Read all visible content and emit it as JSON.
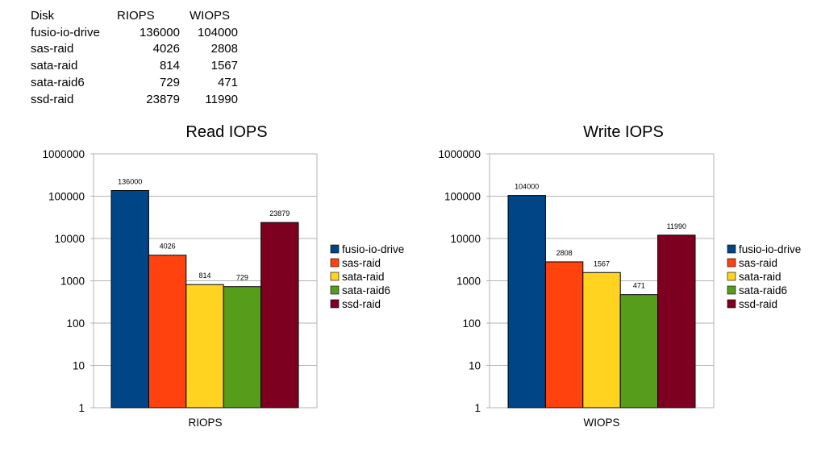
{
  "table": {
    "headers": [
      "Disk",
      "RIOPS",
      "WIOPS"
    ],
    "rows": [
      [
        "fusio-io-drive",
        "136000",
        "104000"
      ],
      [
        "sas-raid",
        "4026",
        "2808"
      ],
      [
        "sata-raid",
        "814",
        "1567"
      ],
      [
        "sata-raid6",
        "729",
        "471"
      ],
      [
        "ssd-raid",
        "23879",
        "11990"
      ]
    ]
  },
  "chart_data": [
    {
      "type": "bar",
      "title": "Read IOPS",
      "categories": [
        "RIOPS"
      ],
      "yscale": "log",
      "ylim": [
        1,
        1000000
      ],
      "yticks": [
        "1",
        "10",
        "100",
        "1000",
        "10000",
        "100000",
        "1000000"
      ],
      "legend_position": "right",
      "grid": true,
      "series": [
        {
          "name": "fusio-io-drive",
          "values": [
            136000
          ],
          "label": "136000",
          "color": "#004586"
        },
        {
          "name": "sas-raid",
          "values": [
            4026
          ],
          "label": "4026",
          "color": "#ff420e"
        },
        {
          "name": "sata-raid",
          "values": [
            814
          ],
          "label": "814",
          "color": "#ffd320"
        },
        {
          "name": "sata-raid6",
          "values": [
            729
          ],
          "label": "729",
          "color": "#579d1c"
        },
        {
          "name": "ssd-raid",
          "values": [
            23879
          ],
          "label": "23879",
          "color": "#7e0021"
        }
      ]
    },
    {
      "type": "bar",
      "title": "Write IOPS",
      "categories": [
        "WIOPS"
      ],
      "yscale": "log",
      "ylim": [
        1,
        1000000
      ],
      "yticks": [
        "1",
        "10",
        "100",
        "1000",
        "10000",
        "100000",
        "1000000"
      ],
      "legend_position": "right",
      "grid": true,
      "series": [
        {
          "name": "fusio-io-drive",
          "values": [
            104000
          ],
          "label": "104000",
          "color": "#004586"
        },
        {
          "name": "sas-raid",
          "values": [
            2808
          ],
          "label": "2808",
          "color": "#ff420e"
        },
        {
          "name": "sata-raid",
          "values": [
            1567
          ],
          "label": "1567",
          "color": "#ffd320"
        },
        {
          "name": "sata-raid6",
          "values": [
            471
          ],
          "label": "471",
          "color": "#579d1c"
        },
        {
          "name": "ssd-raid",
          "values": [
            11990
          ],
          "label": "11990",
          "color": "#7e0021"
        }
      ]
    }
  ]
}
